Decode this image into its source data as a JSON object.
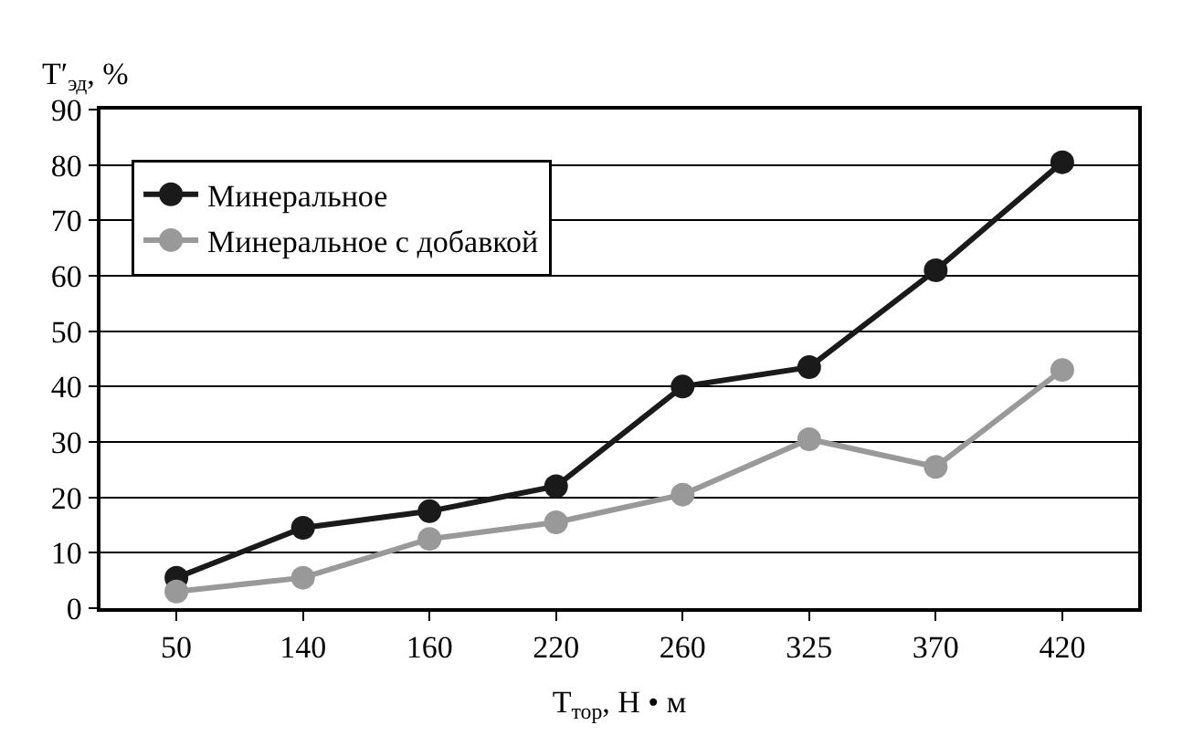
{
  "chart_data": {
    "type": "line",
    "xlabel": "T$_{тор}$, Н • м",
    "ylabel": "T′$_{эд}$, %",
    "categories": [
      "50",
      "140",
      "160",
      "220",
      "260",
      "325",
      "370",
      "420"
    ],
    "series": [
      {
        "name": "Минеральное",
        "color": "#1a1a1a",
        "values": [
          5.5,
          14.5,
          17.5,
          22,
          40,
          43.5,
          61,
          80.5
        ]
      },
      {
        "name": "Минеральное с добавкой",
        "color": "#999999",
        "values": [
          3,
          5.5,
          12.5,
          15.5,
          20.5,
          30.5,
          25.5,
          43
        ]
      }
    ],
    "ylim": [
      0,
      90
    ],
    "yticks": [
      0,
      10,
      20,
      30,
      40,
      50,
      60,
      70,
      80,
      90
    ],
    "grid": "y",
    "legend": "top left",
    "marker": "circle",
    "line_style": "solid"
  }
}
